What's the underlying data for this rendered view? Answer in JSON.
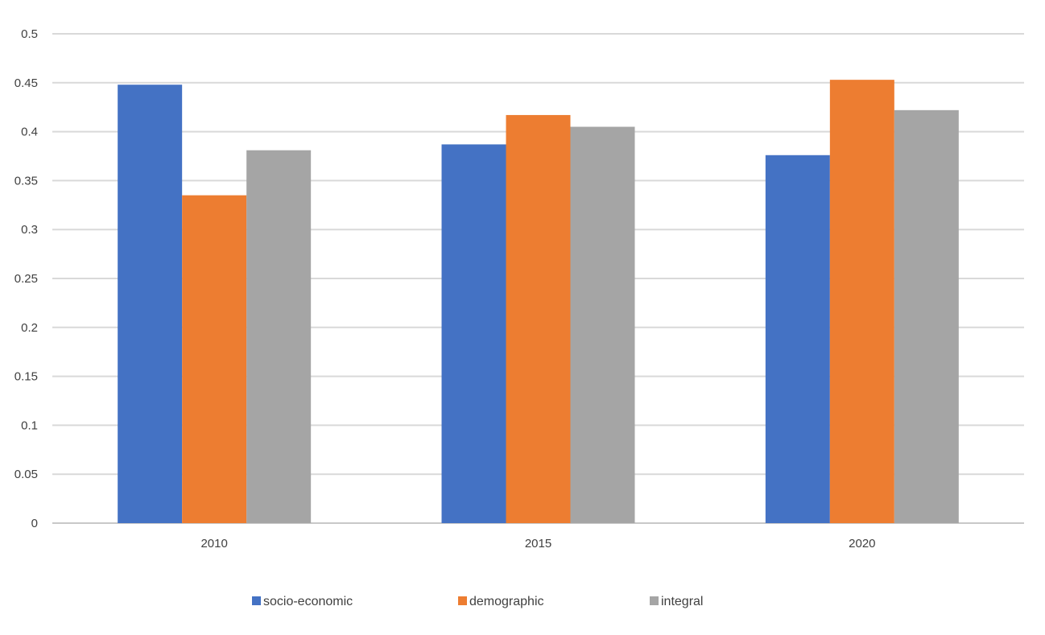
{
  "chart_data": {
    "type": "bar",
    "categories": [
      "2010",
      "2015",
      "2020"
    ],
    "series": [
      {
        "name": "socio-economic",
        "color": "#4472C4",
        "values": [
          0.448,
          0.387,
          0.376
        ]
      },
      {
        "name": "demographic",
        "color": "#ED7D31",
        "values": [
          0.335,
          0.417,
          0.453
        ]
      },
      {
        "name": "integral",
        "color": "#A5A5A5",
        "values": [
          0.381,
          0.405,
          0.422
        ]
      }
    ],
    "ylim": [
      0,
      0.5
    ],
    "yticks": [
      "0",
      "0.05",
      "0.1",
      "0.15",
      "0.2",
      "0.25",
      "0.3",
      "0.35",
      "0.4",
      "0.45",
      "0.5"
    ],
    "grid": true,
    "legend_position": "bottom"
  }
}
